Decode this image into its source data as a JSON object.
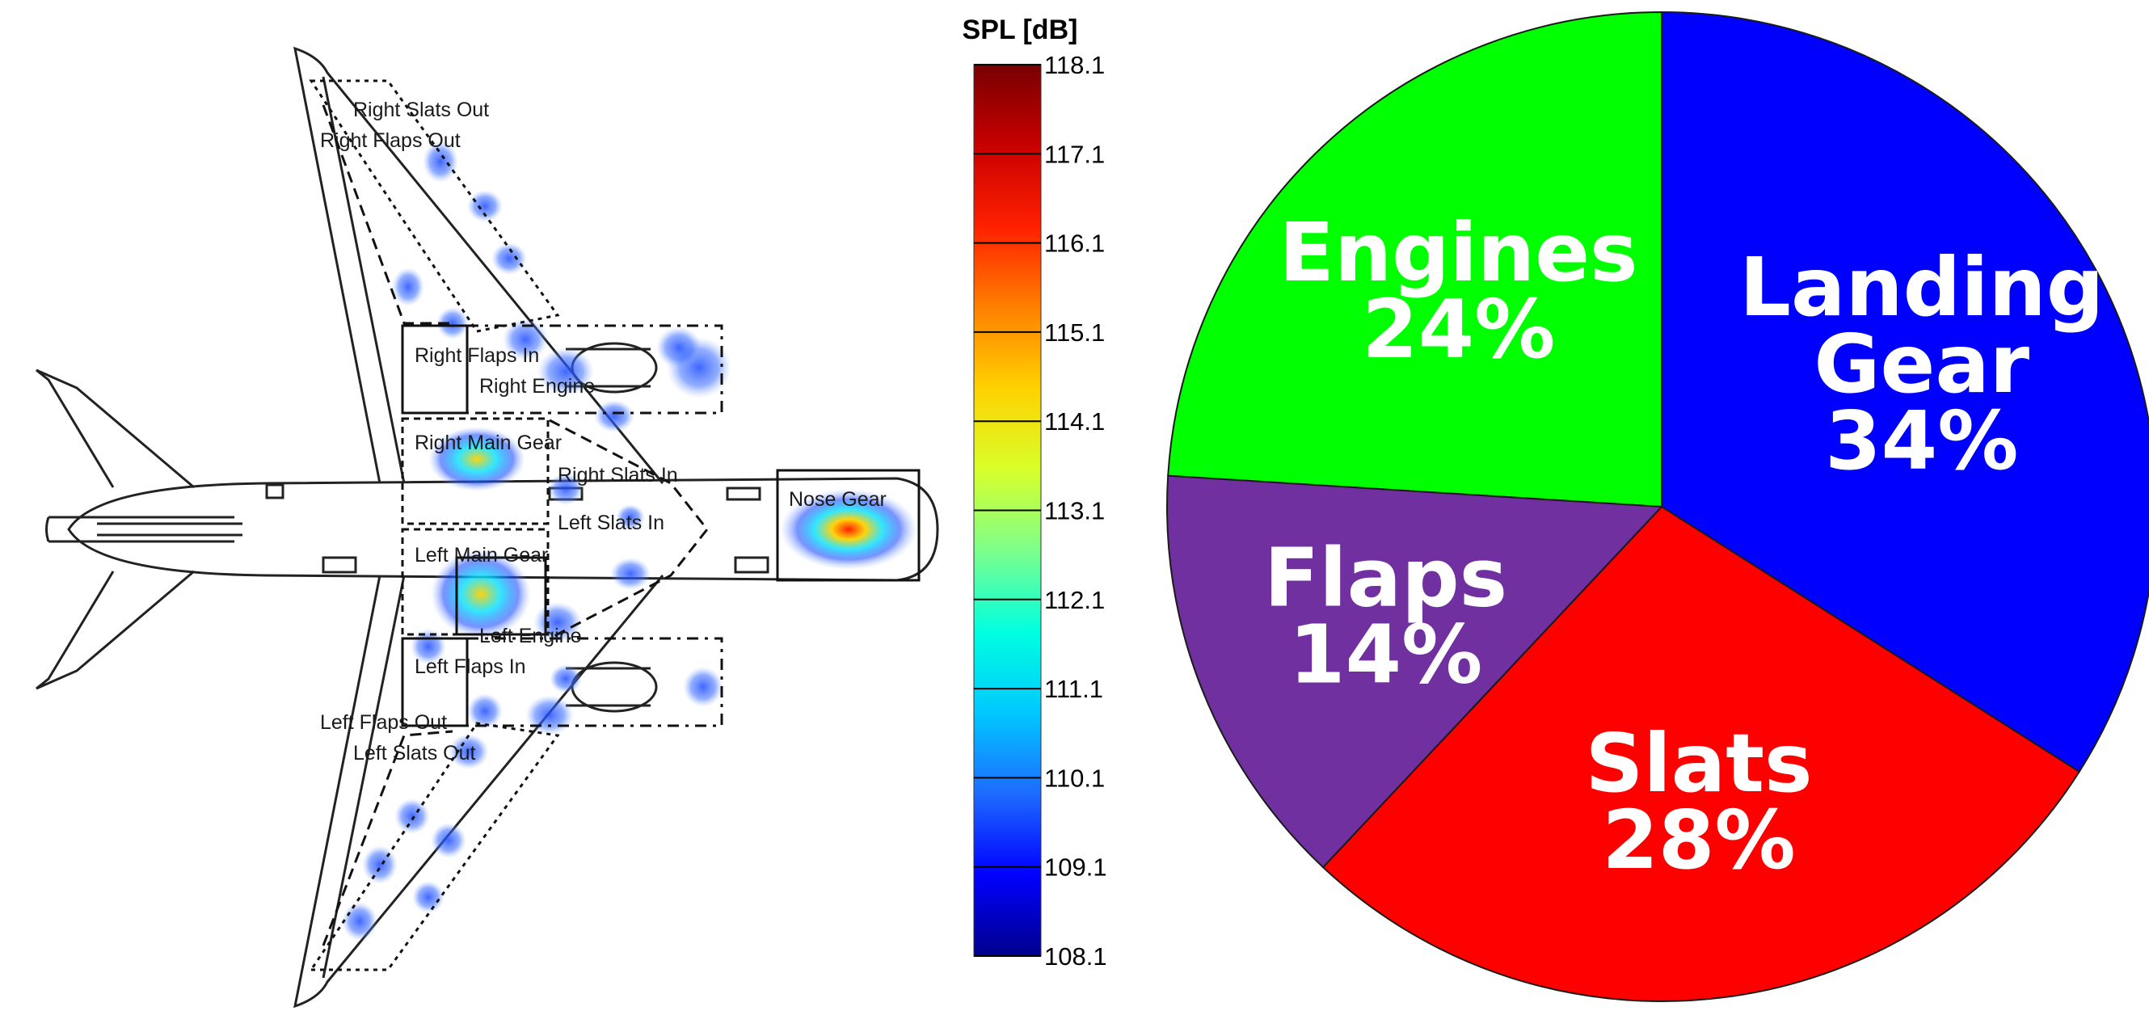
{
  "colorbar": {
    "title": "SPL [dB]",
    "min": 108.1,
    "max": 118.1,
    "ticks": [
      "118.1",
      "117.1",
      "116.1",
      "115.1",
      "114.1",
      "113.1",
      "112.1",
      "111.1",
      "110.1",
      "109.1",
      "108.1"
    ],
    "colors": [
      "#00008b",
      "#0000ff",
      "#1e6bff",
      "#00c8ff",
      "#00ffe0",
      "#7cff8c",
      "#d8ff2a",
      "#ffd200",
      "#ff8000",
      "#ff2000",
      "#c80000",
      "#780000"
    ]
  },
  "aircraft_map": {
    "zones": [
      {
        "id": "right-slats-out",
        "label": "Right Slats Out"
      },
      {
        "id": "right-flaps-out",
        "label": "Right Flaps Out"
      },
      {
        "id": "right-flaps-in",
        "label": "Right Flaps In"
      },
      {
        "id": "right-engine",
        "label": "Right Engine"
      },
      {
        "id": "right-main-gear",
        "label": "Right Main Gear"
      },
      {
        "id": "right-slats-in",
        "label": "Right Slats In"
      },
      {
        "id": "nose-gear",
        "label": "Nose Gear"
      },
      {
        "id": "left-slats-in",
        "label": "Left Slats In"
      },
      {
        "id": "left-main-gear",
        "label": "Left Main Gear"
      },
      {
        "id": "left-engine",
        "label": "Left Engine"
      },
      {
        "id": "left-flaps-in",
        "label": "Left Flaps In"
      },
      {
        "id": "left-flaps-out",
        "label": "Left Flaps Out"
      },
      {
        "id": "left-slats-out",
        "label": "Left Slats Out"
      }
    ]
  },
  "chart_data": {
    "type": "pie",
    "slices": [
      {
        "name": "Landing Gear",
        "value": 34,
        "label_lines": [
          "Landing",
          "Gear",
          "34%"
        ],
        "color": "#0000ff"
      },
      {
        "name": "Slats",
        "value": 28,
        "label_lines": [
          "Slats",
          "28%"
        ],
        "color": "#ff0000"
      },
      {
        "name": "Flaps",
        "value": 14,
        "label_lines": [
          "Flaps",
          "14%"
        ],
        "color": "#7030a0"
      },
      {
        "name": "Engines",
        "value": 24,
        "label_lines": [
          "Engines",
          "24%"
        ],
        "color": "#00ff00"
      }
    ]
  }
}
